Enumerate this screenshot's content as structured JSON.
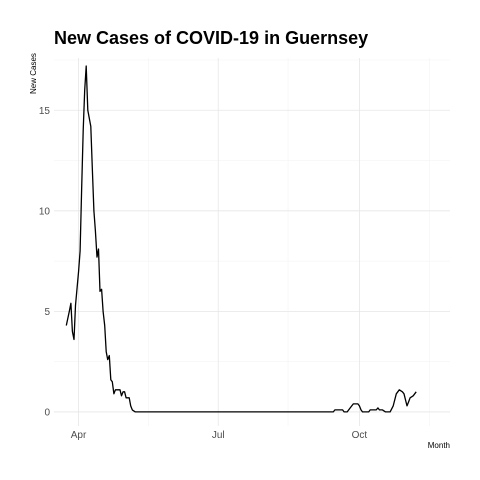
{
  "chart_data": {
    "type": "line",
    "title": "New Cases of COVID-19 in Guernsey",
    "xlabel": "Month",
    "ylabel": "New Cases",
    "x_ticks": [
      {
        "date": "2020-04-01",
        "label": "Apr"
      },
      {
        "date": "2020-07-01",
        "label": "Jul"
      },
      {
        "date": "2020-10-01",
        "label": "Oct"
      }
    ],
    "y_ticks": [
      0,
      5,
      10,
      15
    ],
    "xlim": [
      "2020-03-16",
      "2020-11-29"
    ],
    "ylim": [
      -0.7,
      17.6
    ],
    "grid": true,
    "legend": "none",
    "colors": {
      "line": "#000000",
      "grid": "#e6e6e6",
      "background": "#ffffff"
    },
    "series": [
      {
        "values": [
          [
            "2020-03-24",
            4.3
          ],
          [
            "2020-03-26",
            5.0
          ],
          [
            "2020-03-27",
            5.4
          ],
          [
            "2020-03-28",
            4.0
          ],
          [
            "2020-03-29",
            3.6
          ],
          [
            "2020-03-30",
            5.3
          ],
          [
            "2020-04-01",
            7.0
          ],
          [
            "2020-04-02",
            8.0
          ],
          [
            "2020-04-03",
            11.0
          ],
          [
            "2020-04-04",
            14.0
          ],
          [
            "2020-04-05",
            16.0
          ],
          [
            "2020-04-06",
            17.2
          ],
          [
            "2020-04-07",
            15.0
          ],
          [
            "2020-04-09",
            14.2
          ],
          [
            "2020-04-10",
            12.0
          ],
          [
            "2020-04-11",
            10.0
          ],
          [
            "2020-04-12",
            9.0
          ],
          [
            "2020-04-13",
            7.7
          ],
          [
            "2020-04-14",
            8.1
          ],
          [
            "2020-04-15",
            6.0
          ],
          [
            "2020-04-16",
            6.1
          ],
          [
            "2020-04-17",
            5.0
          ],
          [
            "2020-04-18",
            4.3
          ],
          [
            "2020-04-19",
            3.0
          ],
          [
            "2020-04-20",
            2.6
          ],
          [
            "2020-04-21",
            2.8
          ],
          [
            "2020-04-22",
            1.6
          ],
          [
            "2020-04-23",
            1.5
          ],
          [
            "2020-04-24",
            0.9
          ],
          [
            "2020-04-25",
            1.1
          ],
          [
            "2020-04-28",
            1.1
          ],
          [
            "2020-04-29",
            0.8
          ],
          [
            "2020-04-30",
            1.0
          ],
          [
            "2020-05-01",
            1.0
          ],
          [
            "2020-05-02",
            0.7
          ],
          [
            "2020-05-04",
            0.7
          ],
          [
            "2020-05-05",
            0.3
          ],
          [
            "2020-05-06",
            0.1
          ],
          [
            "2020-05-08",
            0.0
          ],
          [
            "2020-09-14",
            0.0
          ],
          [
            "2020-09-15",
            0.1
          ],
          [
            "2020-09-20",
            0.1
          ],
          [
            "2020-09-21",
            0.0
          ],
          [
            "2020-09-23",
            0.0
          ],
          [
            "2020-09-25",
            0.2
          ],
          [
            "2020-09-27",
            0.4
          ],
          [
            "2020-09-30",
            0.4
          ],
          [
            "2020-10-01",
            0.3
          ],
          [
            "2020-10-02",
            0.1
          ],
          [
            "2020-10-03",
            0.0
          ],
          [
            "2020-10-07",
            0.0
          ],
          [
            "2020-10-08",
            0.1
          ],
          [
            "2020-10-12",
            0.1
          ],
          [
            "2020-10-13",
            0.2
          ],
          [
            "2020-10-14",
            0.1
          ],
          [
            "2020-10-16",
            0.1
          ],
          [
            "2020-10-18",
            0.0
          ],
          [
            "2020-10-21",
            0.0
          ],
          [
            "2020-10-23",
            0.3
          ],
          [
            "2020-10-25",
            0.9
          ],
          [
            "2020-10-26",
            1.0
          ],
          [
            "2020-10-27",
            1.1
          ],
          [
            "2020-10-29",
            1.0
          ],
          [
            "2020-10-30",
            0.9
          ],
          [
            "2020-10-31",
            0.6
          ],
          [
            "2020-11-01",
            0.3
          ],
          [
            "2020-11-02",
            0.5
          ],
          [
            "2020-11-03",
            0.7
          ],
          [
            "2020-11-05",
            0.8
          ],
          [
            "2020-11-06",
            0.9
          ],
          [
            "2020-11-07",
            1.0
          ]
        ]
      }
    ]
  }
}
